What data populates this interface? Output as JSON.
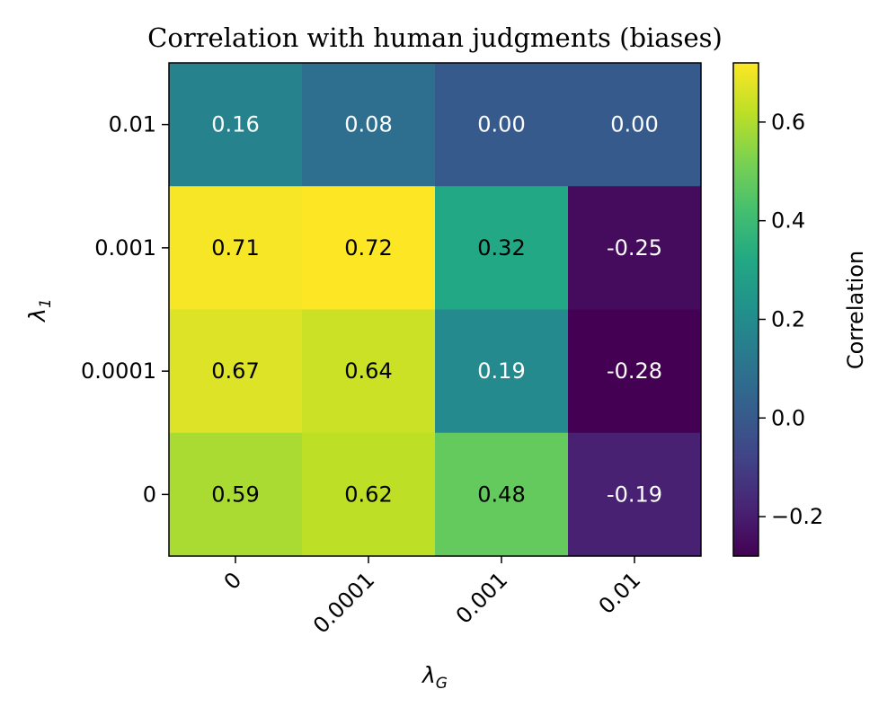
{
  "chart_data": {
    "type": "heatmap",
    "title": "Correlation with human judgments (biases)",
    "xlabel": {
      "base": "λ",
      "sub": "G"
    },
    "ylabel": {
      "base": "λ",
      "sub": "1"
    },
    "x_categories": [
      "0",
      "0.0001",
      "0.001",
      "0.01"
    ],
    "y_categories": [
      "0.01",
      "0.001",
      "0.0001",
      "0"
    ],
    "values": [
      [
        0.16,
        0.08,
        0.0,
        0.0
      ],
      [
        0.71,
        0.72,
        0.32,
        -0.25
      ],
      [
        0.67,
        0.64,
        0.19,
        -0.28
      ],
      [
        0.59,
        0.62,
        0.48,
        -0.19
      ]
    ],
    "cell_labels": [
      [
        "0.16",
        "0.08",
        "0.00",
        "0.00"
      ],
      [
        "0.71",
        "0.72",
        "0.32",
        "-0.25"
      ],
      [
        "0.67",
        "0.64",
        "0.19",
        "-0.28"
      ],
      [
        "0.59",
        "0.62",
        "0.48",
        "-0.19"
      ]
    ],
    "colormap": "viridis",
    "vmin": -0.28,
    "vmax": 0.72,
    "colorbar": {
      "label": "Correlation",
      "ticks": [
        -0.2,
        0.0,
        0.2,
        0.4,
        0.6
      ],
      "tick_labels": [
        "−0.2",
        "0.0",
        "0.2",
        "0.4",
        "0.6"
      ]
    },
    "text_colors": {
      "dark": "#000000",
      "light": "#ffffff"
    }
  }
}
